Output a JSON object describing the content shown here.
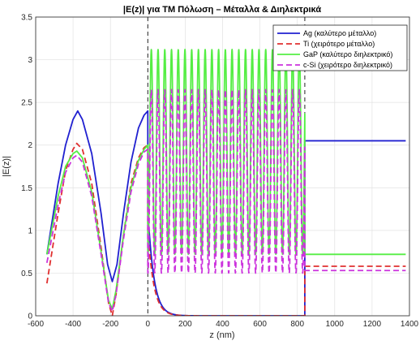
{
  "chart_data": {
    "type": "line",
    "title": "|E(z)| για TM Πόλωση – Μέταλλα & Διηλεκτρικά",
    "xlabel": "z (nm)",
    "ylabel": "|E(z)|",
    "xlim": [
      -600,
      1400
    ],
    "ylim": [
      0,
      3.5
    ],
    "xticks": [
      -600,
      -400,
      -200,
      0,
      200,
      400,
      600,
      800,
      1000,
      1200,
      1400
    ],
    "xtick_labels": [
      "-600",
      "-400",
      "-200",
      "0",
      "200",
      "400",
      "600",
      "800",
      "1000",
      "1200",
      "1400"
    ],
    "yticks": [
      0,
      0.5,
      1,
      1.5,
      2,
      2.5,
      3,
      3.5
    ],
    "ytick_labels": [
      "0",
      "0.5",
      "1",
      "1.5",
      "2",
      "2.5",
      "3",
      "3.5"
    ],
    "grid": true,
    "legend_position": "top-right",
    "boundaries": [
      0,
      840
    ],
    "series": [
      {
        "name": "Ag (καλύτερο μέταλλο)",
        "color": "#2020d0",
        "dash": "solid",
        "incident_points": [
          [
            -540,
            0.72
          ],
          [
            -480,
            1.55
          ],
          [
            -440,
            2.0
          ],
          [
            -400,
            2.3
          ],
          [
            -375,
            2.4
          ],
          [
            -350,
            2.3
          ],
          [
            -300,
            1.9
          ],
          [
            -250,
            1.2
          ],
          [
            -215,
            0.6
          ],
          [
            -190,
            0.4
          ],
          [
            -165,
            0.6
          ],
          [
            -130,
            1.2
          ],
          [
            -90,
            1.8
          ],
          [
            -50,
            2.2
          ],
          [
            -20,
            2.35
          ],
          [
            0,
            2.4
          ]
        ],
        "layer_start": 1.25,
        "layer_decay_nm": 32,
        "layer_osc_min": 0,
        "layer_osc_max": 0,
        "layer_period_nm": 60,
        "layer_phase": 0,
        "transmitted": 2.05
      },
      {
        "name": "Ti (χειρότερο μέταλλο)",
        "color": "#e03030",
        "dash": "dashed",
        "incident_points": [
          [
            -540,
            0.38
          ],
          [
            -480,
            1.2
          ],
          [
            -440,
            1.7
          ],
          [
            -400,
            1.95
          ],
          [
            -380,
            2.02
          ],
          [
            -350,
            1.95
          ],
          [
            -300,
            1.55
          ],
          [
            -250,
            0.8
          ],
          [
            -210,
            0.15
          ],
          [
            -190,
            0.0
          ],
          [
            -170,
            0.25
          ],
          [
            -130,
            0.95
          ],
          [
            -90,
            1.55
          ],
          [
            -50,
            1.85
          ],
          [
            -20,
            1.97
          ],
          [
            0,
            2.0
          ]
        ],
        "layer_start": 1.0,
        "layer_decay_nm": 32,
        "layer_osc_min": 0,
        "layer_osc_max": 0,
        "layer_period_nm": 60,
        "layer_phase": 0,
        "transmitted": 0.58
      },
      {
        "name": "GaP (καλύτερο διηλεκτρικό)",
        "color": "#55ee44",
        "dash": "solid",
        "incident_points": [
          [
            -540,
            0.72
          ],
          [
            -480,
            1.4
          ],
          [
            -440,
            1.75
          ],
          [
            -400,
            1.9
          ],
          [
            -380,
            1.93
          ],
          [
            -350,
            1.85
          ],
          [
            -300,
            1.45
          ],
          [
            -250,
            0.75
          ],
          [
            -210,
            0.18
          ],
          [
            -190,
            0.08
          ],
          [
            -170,
            0.3
          ],
          [
            -130,
            0.95
          ],
          [
            -90,
            1.5
          ],
          [
            -50,
            1.82
          ],
          [
            -20,
            1.95
          ],
          [
            0,
            2.0
          ]
        ],
        "layer_start": 0,
        "layer_decay_nm": 0,
        "layer_osc_min": 0.72,
        "layer_osc_max": 3.12,
        "layer_period_nm": 72,
        "layer_phase": 1.5,
        "transmitted": 0.72
      },
      {
        "name": "c-Si (χειρότερο διηλεκτρικό)",
        "color": "#cc33dd",
        "dash": "dashed",
        "incident_points": [
          [
            -540,
            0.62
          ],
          [
            -480,
            1.3
          ],
          [
            -440,
            1.68
          ],
          [
            -400,
            1.85
          ],
          [
            -380,
            1.88
          ],
          [
            -350,
            1.8
          ],
          [
            -300,
            1.4
          ],
          [
            -250,
            0.72
          ],
          [
            -210,
            0.15
          ],
          [
            -190,
            0.05
          ],
          [
            -170,
            0.25
          ],
          [
            -130,
            0.9
          ],
          [
            -90,
            1.45
          ],
          [
            -50,
            1.78
          ],
          [
            -20,
            1.92
          ],
          [
            0,
            1.95
          ]
        ],
        "layer_start": 0,
        "layer_decay_nm": 0,
        "layer_osc_min": 0.5,
        "layer_osc_max": 2.65,
        "layer_period_nm": 72,
        "layer_phase": 1.5,
        "transmitted": 0.53
      }
    ]
  }
}
